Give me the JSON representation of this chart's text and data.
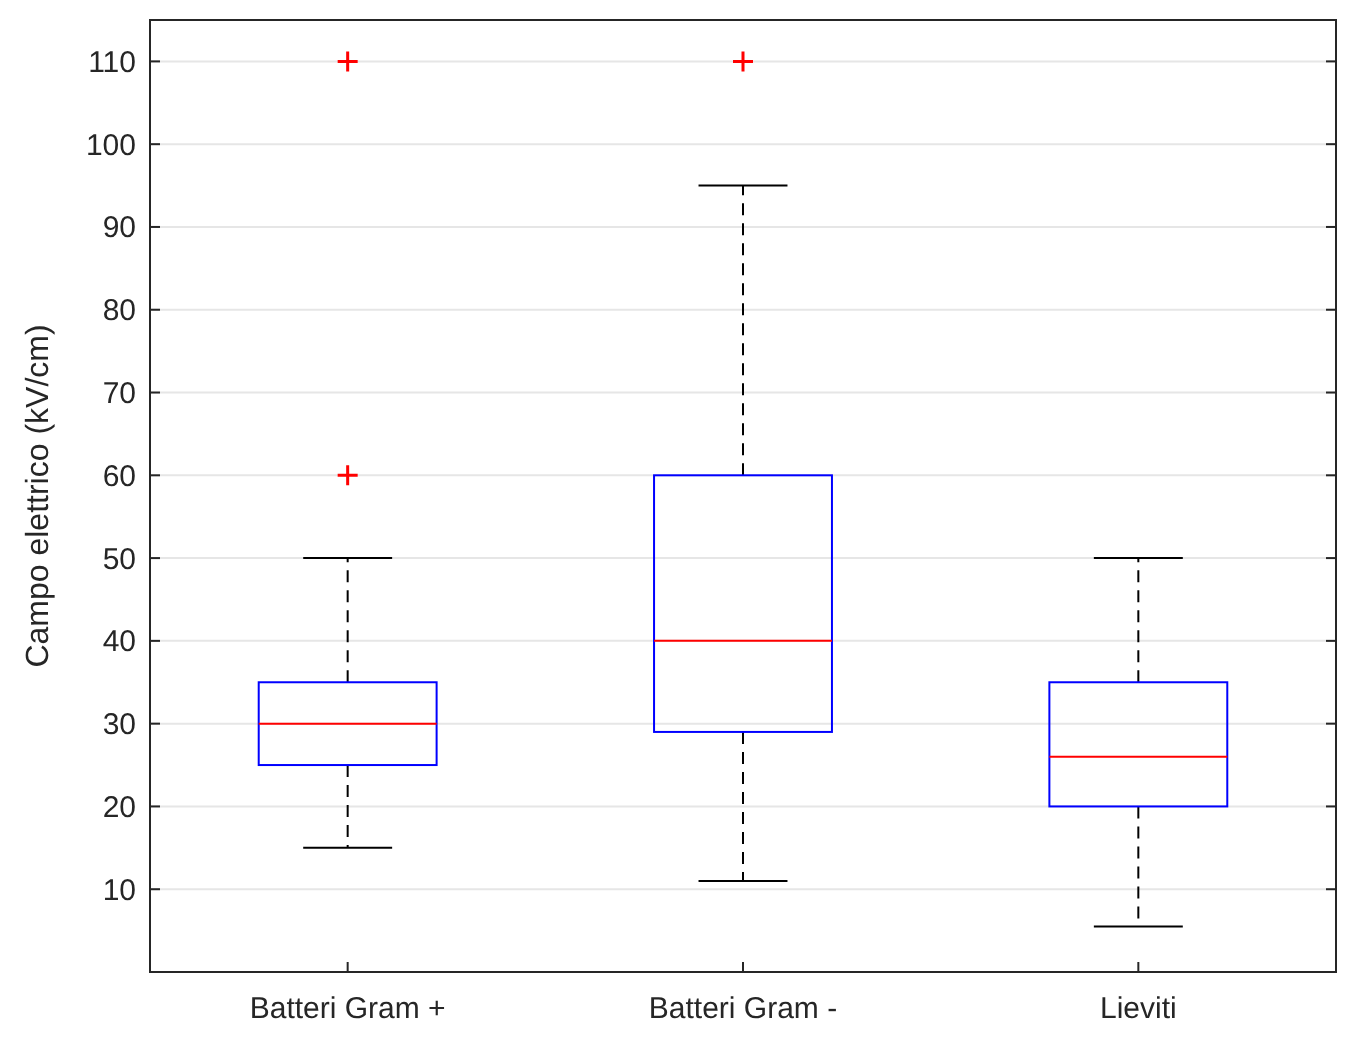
{
  "chart_data": {
    "type": "box",
    "ylabel": "Campo elettrico (kV/cm)",
    "categories": [
      "Batteri Gram +",
      "Batteri Gram -",
      "Lieviti"
    ],
    "color": "#0000ff",
    "boxes": [
      {
        "low": 15,
        "q1": 25,
        "median": 30,
        "q3": 35,
        "high": 50,
        "outliers": [
          60,
          110
        ]
      },
      {
        "low": 11,
        "q1": 29,
        "median": 40,
        "q3": 60,
        "high": 95,
        "outliers": [
          110
        ]
      },
      {
        "low": 5.5,
        "q1": 20,
        "median": 26,
        "q3": 35,
        "high": 50
      }
    ],
    "ylim": [
      0,
      115
    ],
    "yticks": [
      10,
      20,
      30,
      40,
      50,
      60,
      70,
      80,
      90,
      100,
      110
    ],
    "grid": "y"
  }
}
